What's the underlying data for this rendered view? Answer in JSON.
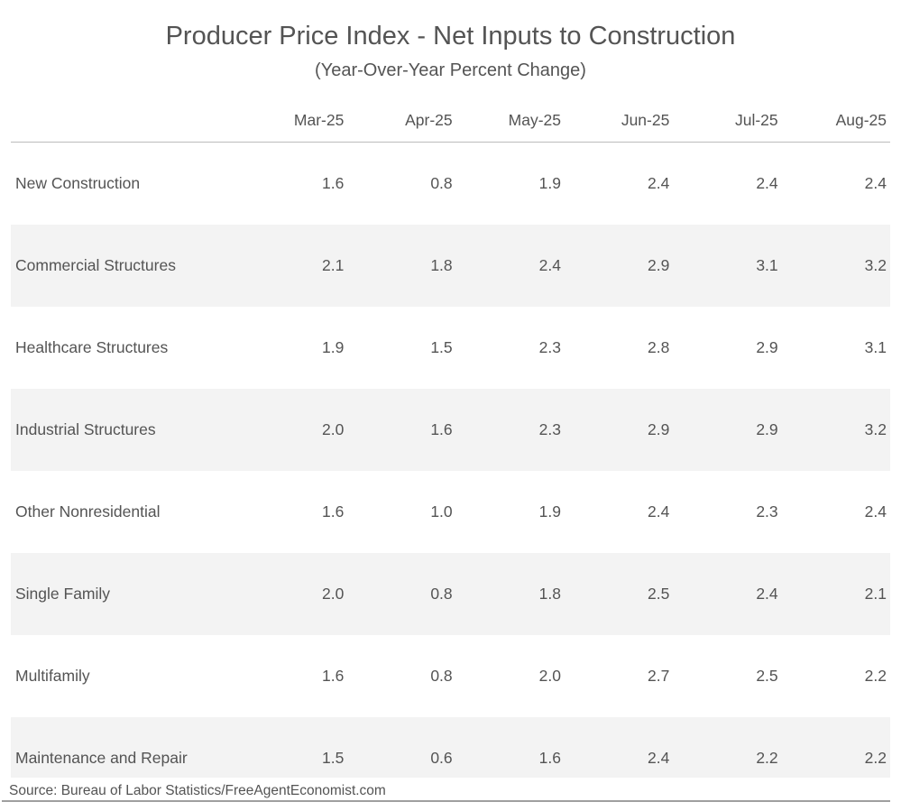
{
  "title": "Producer Price Index - Net Inputs to Construction",
  "subtitle": "(Year-Over-Year Percent Change)",
  "columns": [
    "Mar-25",
    "Apr-25",
    "May-25",
    "Jun-25",
    "Jul-25",
    "Aug-25"
  ],
  "rows": [
    {
      "label": "New Construction",
      "values": [
        "1.6",
        "0.8",
        "1.9",
        "2.4",
        "2.4",
        "2.4"
      ]
    },
    {
      "label": "Commercial Structures",
      "values": [
        "2.1",
        "1.8",
        "2.4",
        "2.9",
        "3.1",
        "3.2"
      ]
    },
    {
      "label": "Healthcare Structures",
      "values": [
        "1.9",
        "1.5",
        "2.3",
        "2.8",
        "2.9",
        "3.1"
      ]
    },
    {
      "label": "Industrial Structures",
      "values": [
        "2.0",
        "1.6",
        "2.3",
        "2.9",
        "2.9",
        "3.2"
      ]
    },
    {
      "label": "Other Nonresidential",
      "values": [
        "1.6",
        "1.0",
        "1.9",
        "2.4",
        "2.3",
        "2.4"
      ]
    },
    {
      "label": "Single Family",
      "values": [
        "2.0",
        "0.8",
        "1.8",
        "2.5",
        "2.4",
        "2.1"
      ]
    },
    {
      "label": "Multifamily",
      "values": [
        "1.6",
        "0.8",
        "2.0",
        "2.7",
        "2.5",
        "2.2"
      ]
    },
    {
      "label": "Maintenance and Repair",
      "values": [
        "1.5",
        "0.6",
        "1.6",
        "2.4",
        "2.2",
        "2.2"
      ]
    }
  ],
  "source": "Source: Bureau of Labor Statistics/FreeAgentEconomist.com",
  "colors": {
    "text": "#545454",
    "band": "#f3f3f3",
    "header_line": "#bcbcbc",
    "bottom_line": "#9f9f9f"
  },
  "chart_data": {
    "type": "table",
    "title": "Producer Price Index - Net Inputs to Construction",
    "subtitle": "(Year-Over-Year Percent Change)",
    "categories": [
      "Mar-25",
      "Apr-25",
      "May-25",
      "Jun-25",
      "Jul-25",
      "Aug-25"
    ],
    "series": [
      {
        "name": "New Construction",
        "values": [
          1.6,
          0.8,
          1.9,
          2.4,
          2.4,
          2.4
        ]
      },
      {
        "name": "Commercial Structures",
        "values": [
          2.1,
          1.8,
          2.4,
          2.9,
          3.1,
          3.2
        ]
      },
      {
        "name": "Healthcare Structures",
        "values": [
          1.9,
          1.5,
          2.3,
          2.8,
          2.9,
          3.1
        ]
      },
      {
        "name": "Industrial Structures",
        "values": [
          2.0,
          1.6,
          2.3,
          2.9,
          2.9,
          3.2
        ]
      },
      {
        "name": "Other Nonresidential",
        "values": [
          1.6,
          1.0,
          1.9,
          2.4,
          2.3,
          2.4
        ]
      },
      {
        "name": "Single Family",
        "values": [
          2.0,
          0.8,
          1.8,
          2.5,
          2.4,
          2.1
        ]
      },
      {
        "name": "Multifamily",
        "values": [
          1.6,
          0.8,
          2.0,
          2.7,
          2.5,
          2.2
        ]
      },
      {
        "name": "Maintenance and Repair",
        "values": [
          1.5,
          0.6,
          1.6,
          2.4,
          2.2,
          2.2
        ]
      }
    ],
    "value_unit": "year-over-year percent change",
    "source": "Source: Bureau of Labor Statistics/FreeAgentEconomist.com"
  }
}
